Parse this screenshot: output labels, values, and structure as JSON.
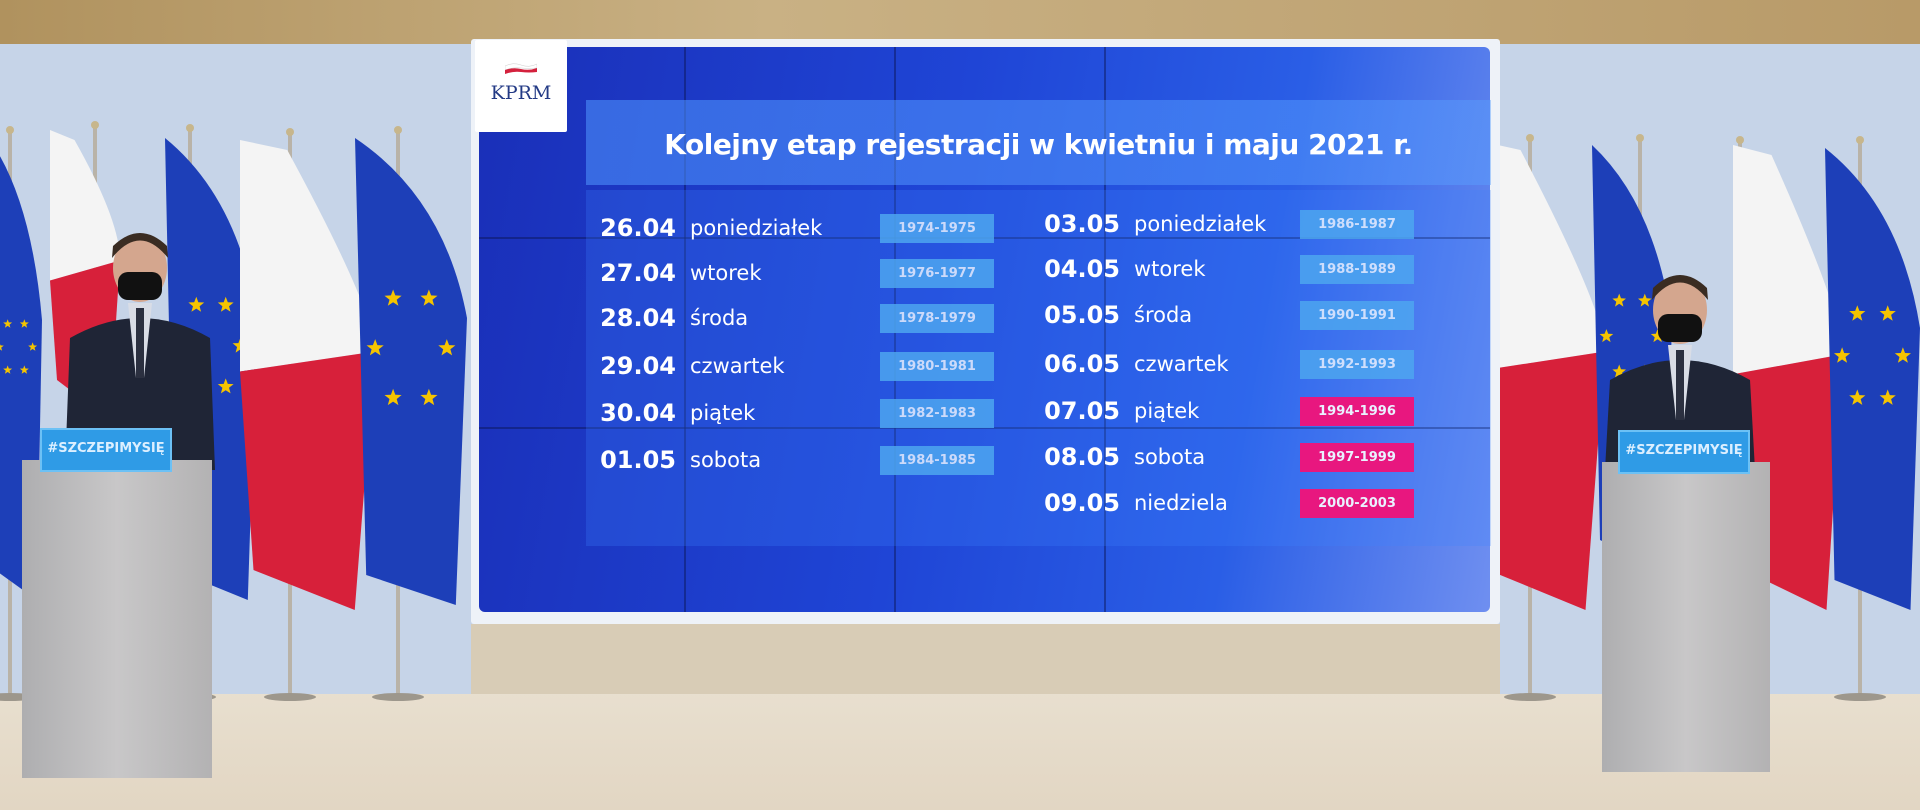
{
  "screen": {
    "logo_text": "KPRM",
    "title": "Kolejny etap rejestracji w kwietniu i maju 2021 r.",
    "left_column": [
      {
        "date": "26.04",
        "day": "poniedziałek",
        "years": "1974-1975",
        "highlight": false
      },
      {
        "date": "27.04",
        "day": "wtorek",
        "years": "1976-1977",
        "highlight": false
      },
      {
        "date": "28.04",
        "day": "środa",
        "years": "1978-1979",
        "highlight": false
      },
      {
        "date": "29.04",
        "day": "czwartek",
        "years": "1980-1981",
        "highlight": false
      },
      {
        "date": "30.04",
        "day": "piątek",
        "years": "1982-1983",
        "highlight": false
      },
      {
        "date": "01.05",
        "day": "sobota",
        "years": "1984-1985",
        "highlight": false
      }
    ],
    "right_column": [
      {
        "date": "03.05",
        "day": "poniedziałek",
        "years": "1986-1987",
        "highlight": false
      },
      {
        "date": "04.05",
        "day": "wtorek",
        "years": "1988-1989",
        "highlight": false
      },
      {
        "date": "05.05",
        "day": "środa",
        "years": "1990-1991",
        "highlight": false
      },
      {
        "date": "06.05",
        "day": "czwartek",
        "years": "1992-1993",
        "highlight": false
      },
      {
        "date": "07.05",
        "day": "piątek",
        "years": "1994-1996",
        "highlight": true
      },
      {
        "date": "08.05",
        "day": "sobota",
        "years": "1997-1999",
        "highlight": true
      },
      {
        "date": "09.05",
        "day": "niedziela",
        "years": "2000-2003",
        "highlight": true
      }
    ],
    "colors": {
      "years_pill": "#4da6f0",
      "years_pill_highlight": "#e8177f",
      "screen_blue": "#1f45d6"
    }
  },
  "podiums": {
    "left_sign": "#SZCZEPIMYSIĘ",
    "right_sign": "#SZCZEPIMYSIĘ"
  }
}
